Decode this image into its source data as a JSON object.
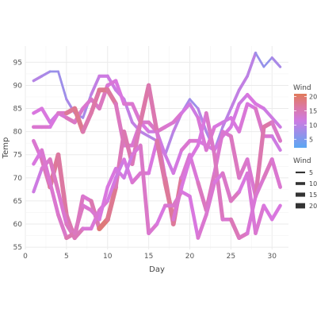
{
  "chart_data": {
    "type": "line",
    "title": "",
    "xlabel": "Day",
    "ylabel": "Temp",
    "xlim": [
      0,
      32
    ],
    "ylim": [
      54.5,
      98.5
    ],
    "xticks": [
      0,
      5,
      10,
      15,
      20,
      25,
      30
    ],
    "yticks": [
      55,
      60,
      65,
      70,
      75,
      80,
      85,
      90,
      95
    ],
    "grid": true,
    "legend_position": "right",
    "color_legend": {
      "title": "Wind",
      "ticks": [
        5,
        10,
        15,
        20
      ],
      "low_color": "#5aa7f2",
      "mid_color": "#d977e0",
      "high_color": "#e07a5a",
      "range": [
        2,
        21
      ]
    },
    "size_legend": {
      "title": "Wind",
      "values": [
        5,
        10,
        15,
        20
      ]
    },
    "x": [
      1,
      2,
      3,
      4,
      5,
      6,
      7,
      8,
      9,
      10,
      11,
      12,
      13,
      14,
      15,
      16,
      17,
      18,
      19,
      20,
      21,
      22,
      23,
      24,
      25,
      26,
      27,
      28,
      29,
      30,
      31
    ],
    "series": [
      {
        "y": [
          91,
          92,
          93,
          93,
          87,
          84,
          83,
          88,
          92,
          92,
          89,
          87,
          82,
          80,
          79,
          78,
          75,
          80,
          84,
          87,
          85,
          80,
          76,
          81,
          85,
          89,
          92,
          97,
          94,
          96,
          94
        ],
        "wind": [
          10,
          9,
          8,
          6,
          9,
          8,
          7,
          10,
          11,
          12,
          11,
          11,
          10,
          11,
          9,
          10,
          9,
          10,
          11,
          6,
          9,
          10,
          8,
          9,
          11,
          10,
          11,
          9,
          5,
          8,
          9
        ]
      },
      {
        "y": [
          84,
          85,
          82,
          84,
          83,
          82,
          85,
          87,
          85,
          90,
          91,
          86,
          86,
          82,
          80,
          80,
          75,
          71,
          76,
          78,
          78,
          77,
          76,
          79,
          81,
          86,
          88,
          86,
          85,
          83,
          81
        ],
        "wind": [
          12,
          13,
          12,
          11,
          15,
          14,
          14,
          13,
          15,
          14,
          12,
          13,
          14,
          13,
          12,
          11,
          12,
          11,
          13,
          14,
          13,
          12,
          12,
          12,
          13,
          11,
          12,
          13,
          12,
          11,
          12
        ]
      },
      {
        "y": [
          81,
          81,
          81,
          84,
          84,
          85,
          80,
          84,
          89,
          89,
          86,
          77,
          77,
          82,
          82,
          80,
          81,
          82,
          84,
          86,
          83,
          76,
          81,
          82,
          83,
          80,
          86,
          85,
          79,
          79,
          76
        ],
        "wind": [
          12,
          15,
          12,
          13,
          15,
          19,
          16,
          15,
          17,
          18,
          15,
          14,
          13,
          14,
          13,
          15,
          13,
          14,
          13,
          11,
          12,
          14,
          13,
          12,
          11,
          14,
          12,
          13,
          15,
          12,
          11
        ]
      },
      {
        "y": [
          78,
          74,
          68,
          75,
          62,
          57,
          66,
          65,
          59,
          61,
          68,
          80,
          73,
          82,
          90,
          80,
          70,
          60,
          70,
          75,
          69,
          63,
          71,
          80,
          79,
          70,
          74,
          66,
          81,
          82,
          78
        ],
        "wind": [
          13,
          14,
          16,
          18,
          15,
          16,
          13,
          14,
          17,
          21,
          14,
          16,
          15,
          15,
          17,
          14,
          13,
          19,
          15,
          12,
          14,
          15,
          14,
          13,
          14,
          15,
          13,
          14,
          17,
          15,
          13
        ]
      },
      {
        "y": [
          67,
          72,
          74,
          67,
          60,
          57,
          59,
          59,
          63,
          65,
          70,
          74,
          69,
          71,
          71,
          78,
          69,
          61,
          68,
          74,
          77,
          84,
          75,
          61,
          61,
          57,
          58,
          66,
          70,
          74,
          68
        ],
        "wind": [
          11,
          12,
          15,
          14,
          13,
          16,
          14,
          12,
          14,
          13,
          11,
          12,
          13,
          14,
          13,
          12,
          20,
          14,
          13,
          12,
          13,
          12,
          16,
          13,
          14,
          16,
          13,
          13,
          14,
          15,
          12
        ]
      },
      {
        "y": [
          73,
          76,
          69,
          62,
          57,
          58,
          64,
          63,
          61,
          68,
          72,
          70,
          75,
          77,
          58,
          60,
          64,
          64,
          67,
          66,
          57,
          62,
          69,
          71,
          65,
          67,
          71,
          58,
          64,
          61,
          64
        ],
        "wind": [
          12,
          13,
          14,
          13,
          15,
          16,
          13,
          14,
          13,
          12,
          13,
          11,
          12,
          14,
          14,
          13,
          12,
          15,
          13,
          12,
          13,
          14,
          13,
          12,
          16,
          13,
          12,
          14,
          13,
          12,
          13
        ]
      }
    ]
  }
}
